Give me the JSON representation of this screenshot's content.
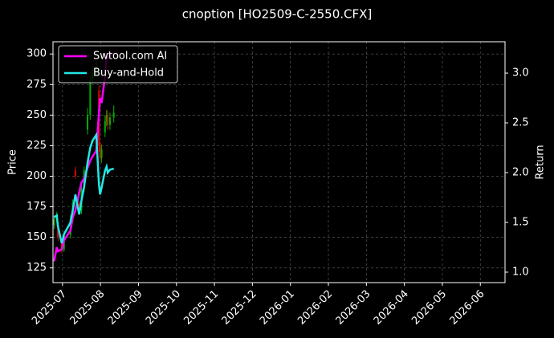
{
  "chart_data": {
    "type": "candlestick",
    "title": "cnoption [HO2509-C-2550.CFX]",
    "ylabel": "Price",
    "y2label": "Return",
    "x": [
      -0.22,
      -0.15,
      -0.12,
      -0.02,
      0.04,
      0.21,
      0.27,
      0.34,
      0.44,
      0.5,
      0.57,
      0.66,
      0.73,
      0.79,
      0.89,
      0.96,
      0.99,
      1.03,
      1.12,
      1.16,
      1.19,
      1.25,
      1.35
    ],
    "open": [
      160,
      165,
      158,
      145,
      140,
      152,
      165,
      205,
      178,
      172,
      190,
      238,
      250,
      280,
      286,
      270,
      225,
      215,
      236,
      245,
      250,
      242,
      248
    ],
    "high": [
      168,
      171,
      160,
      148,
      155,
      168,
      181,
      208,
      180,
      193,
      208,
      256,
      282,
      290,
      294,
      274,
      228,
      226,
      250,
      254,
      254,
      252,
      258
    ],
    "low": [
      157,
      162,
      147,
      137,
      138,
      149,
      162,
      198,
      169,
      169,
      187,
      234,
      246,
      276,
      283,
      220,
      211,
      211,
      232,
      241,
      238,
      238,
      244
    ],
    "close": [
      165,
      168,
      150,
      140,
      152,
      165,
      178,
      200,
      172,
      190,
      205,
      250,
      278,
      285,
      290,
      225,
      215,
      222,
      245,
      250,
      242,
      248,
      252
    ],
    "up_color": "#00b000",
    "down_color": "#e00000",
    "series": [
      {
        "name": "Swtool.com AI",
        "color": "#ff00ff",
        "axis": "y2",
        "values": [
          1.11,
          1.25,
          1.21,
          1.23,
          1.32,
          1.42,
          1.55,
          1.62,
          1.8,
          1.9,
          1.94,
          2.05,
          2.12,
          2.16,
          2.22,
          2.6,
          2.75,
          2.7,
          2.97,
          3.17,
          3.15,
          3.18,
          3.2
        ]
      },
      {
        "name": "Buy-and-Hold",
        "color": "#22e8e8",
        "axis": "y2",
        "values": [
          1.55,
          1.57,
          1.46,
          1.29,
          1.38,
          1.5,
          1.62,
          1.78,
          1.58,
          1.72,
          1.86,
          2.1,
          2.25,
          2.32,
          2.38,
          1.88,
          1.78,
          1.85,
          2.02,
          2.06,
          2.0,
          2.03,
          2.04
        ]
      }
    ],
    "xlim": [
      -0.25,
      11.65
    ],
    "xticks": [
      {
        "value": 0,
        "label": "2025-07"
      },
      {
        "value": 1,
        "label": "2025-08"
      },
      {
        "value": 2,
        "label": "2025-09"
      },
      {
        "value": 3,
        "label": "2025-10"
      },
      {
        "value": 4,
        "label": "2025-11"
      },
      {
        "value": 5,
        "label": "2025-12"
      },
      {
        "value": 6,
        "label": "2026-01"
      },
      {
        "value": 7,
        "label": "2026-02"
      },
      {
        "value": 8,
        "label": "2026-03"
      },
      {
        "value": 9,
        "label": "2026-04"
      },
      {
        "value": 10,
        "label": "2026-05"
      },
      {
        "value": 11,
        "label": "2026-06"
      }
    ],
    "ylim": [
      113,
      310
    ],
    "yticks": [
      125,
      150,
      175,
      200,
      225,
      250,
      275,
      300
    ],
    "y2lim": [
      0.895,
      3.315
    ],
    "y2ticks": [
      {
        "value": 1,
        "label": "1.0"
      },
      {
        "value": 1.5,
        "label": "1.5"
      },
      {
        "value": 2,
        "label": "2.0"
      },
      {
        "value": 2.5,
        "label": "2.5"
      },
      {
        "value": 3,
        "label": "3.0"
      }
    ],
    "grid": true,
    "legend": "upper left"
  }
}
